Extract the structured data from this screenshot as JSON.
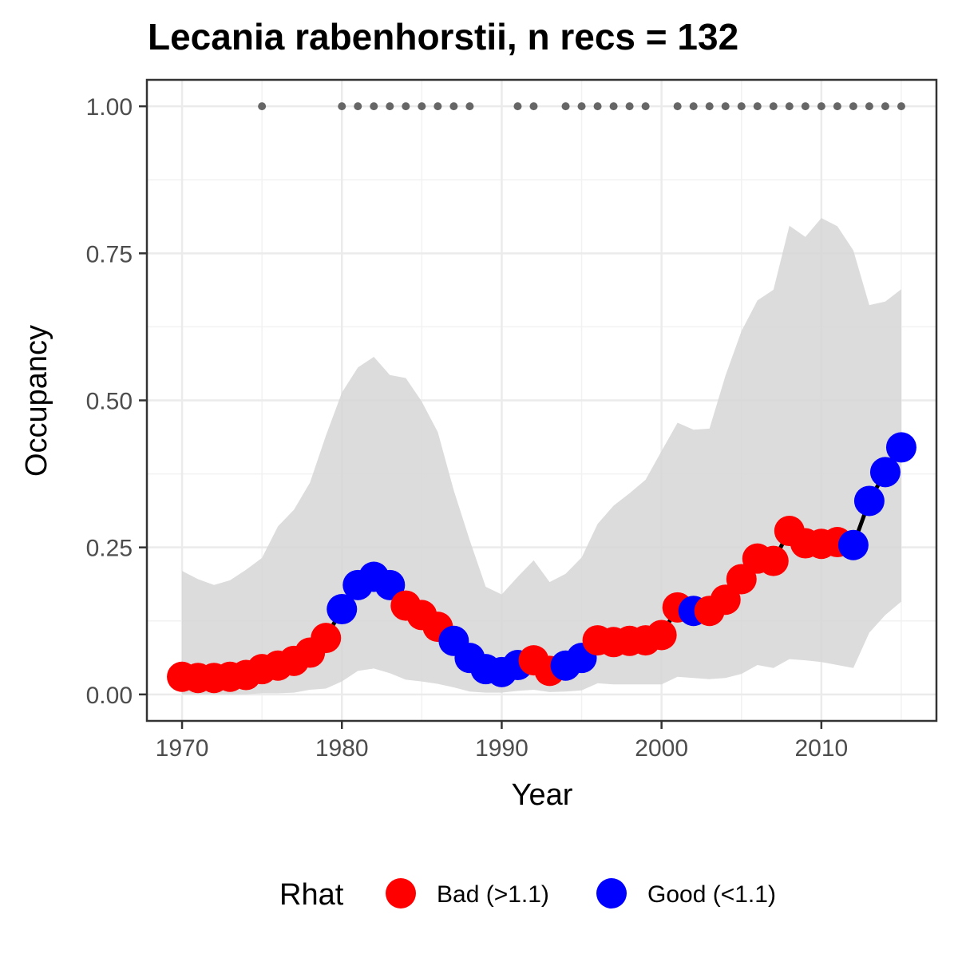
{
  "chart_data": {
    "type": "line",
    "title": "Lecania rabenhorstii, n recs = 132",
    "xlabel": "Year",
    "ylabel": "Occupancy",
    "xlim": [
      1967.8,
      2017.2
    ],
    "ylim": [
      -0.045,
      1.045
    ],
    "x_ticks": [
      {
        "value": 1970,
        "label": "1970"
      },
      {
        "value": 1980,
        "label": "1980"
      },
      {
        "value": 1990,
        "label": "1990"
      },
      {
        "value": 2000,
        "label": "2000"
      },
      {
        "value": 2010,
        "label": "2010"
      }
    ],
    "y_ticks": [
      {
        "value": 0,
        "label": "0.00"
      },
      {
        "value": 0.25,
        "label": "0.25"
      },
      {
        "value": 0.5,
        "label": "0.50"
      },
      {
        "value": 0.75,
        "label": "0.75"
      },
      {
        "value": 1,
        "label": "1.00"
      }
    ],
    "grid": true,
    "colors": {
      "bad": "#ff0000",
      "good": "#0000ff",
      "ribbon": "#d6d6d6",
      "line": "#000000",
      "records": "#666666"
    },
    "legend": {
      "title": "Rhat",
      "position": "bottom",
      "entries": [
        {
          "key": "bad",
          "label": "Bad (>1.1)"
        },
        {
          "key": "good",
          "label": "Good (<1.1)"
        }
      ]
    },
    "years": [
      1970,
      1971,
      1972,
      1973,
      1974,
      1975,
      1976,
      1977,
      1978,
      1979,
      1980,
      1981,
      1982,
      1983,
      1984,
      1985,
      1986,
      1987,
      1988,
      1989,
      1990,
      1991,
      1992,
      1993,
      1994,
      1995,
      1996,
      1997,
      1998,
      1999,
      2000,
      2001,
      2002,
      2003,
      2004,
      2005,
      2006,
      2007,
      2008,
      2009,
      2010,
      2011,
      2012,
      2013,
      2014,
      2015
    ],
    "occupancy": [
      0.03,
      0.028,
      0.028,
      0.03,
      0.033,
      0.043,
      0.049,
      0.057,
      0.071,
      0.096,
      0.145,
      0.186,
      0.2,
      0.186,
      0.151,
      0.135,
      0.115,
      0.091,
      0.062,
      0.043,
      0.038,
      0.05,
      0.058,
      0.04,
      0.049,
      0.062,
      0.092,
      0.089,
      0.091,
      0.092,
      0.101,
      0.148,
      0.142,
      0.142,
      0.161,
      0.196,
      0.231,
      0.227,
      0.278,
      0.257,
      0.256,
      0.259,
      0.254,
      0.329,
      0.378,
      0.42
    ],
    "lower": [
      0.0,
      0.0,
      0.0,
      0.0,
      0.0,
      0.002,
      0.002,
      0.003,
      0.008,
      0.01,
      0.022,
      0.04,
      0.044,
      0.036,
      0.025,
      0.022,
      0.018,
      0.012,
      0.005,
      0.003,
      0.003,
      0.006,
      0.008,
      0.004,
      0.005,
      0.007,
      0.019,
      0.017,
      0.017,
      0.017,
      0.017,
      0.03,
      0.028,
      0.026,
      0.028,
      0.035,
      0.05,
      0.045,
      0.06,
      0.058,
      0.055,
      0.05,
      0.045,
      0.105,
      0.135,
      0.158
    ],
    "upper": [
      0.21,
      0.196,
      0.186,
      0.194,
      0.212,
      0.232,
      0.286,
      0.314,
      0.36,
      0.44,
      0.513,
      0.556,
      0.574,
      0.543,
      0.538,
      0.498,
      0.446,
      0.347,
      0.262,
      0.183,
      0.17,
      0.2,
      0.228,
      0.191,
      0.205,
      0.233,
      0.29,
      0.321,
      0.342,
      0.365,
      0.414,
      0.462,
      0.45,
      0.452,
      0.542,
      0.618,
      0.67,
      0.688,
      0.797,
      0.778,
      0.81,
      0.796,
      0.755,
      0.662,
      0.668,
      0.689
    ],
    "rhat": [
      "bad",
      "bad",
      "bad",
      "bad",
      "bad",
      "bad",
      "bad",
      "bad",
      "bad",
      "bad",
      "good",
      "good",
      "good",
      "good",
      "bad",
      "bad",
      "bad",
      "good",
      "good",
      "good",
      "good",
      "good",
      "bad",
      "bad",
      "good",
      "good",
      "bad",
      "bad",
      "bad",
      "bad",
      "bad",
      "bad",
      "good",
      "bad",
      "bad",
      "bad",
      "bad",
      "bad",
      "bad",
      "bad",
      "bad",
      "bad",
      "good",
      "good",
      "good",
      "good"
    ],
    "record_years": [
      1975,
      1980,
      1981,
      1982,
      1983,
      1984,
      1985,
      1986,
      1987,
      1988,
      1991,
      1992,
      1994,
      1995,
      1996,
      1997,
      1998,
      1999,
      2001,
      2002,
      2003,
      2004,
      2005,
      2006,
      2007,
      2008,
      2009,
      2010,
      2011,
      2012,
      2013,
      2014,
      2015
    ],
    "record_value": 1.0
  }
}
